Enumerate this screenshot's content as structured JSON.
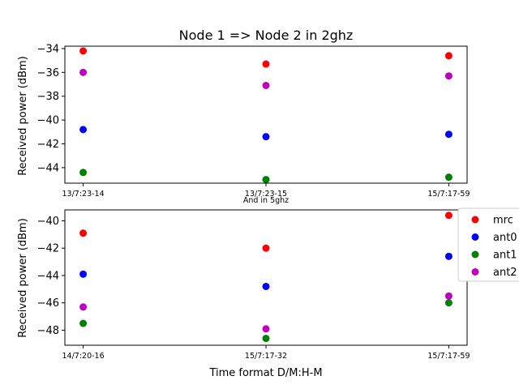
{
  "chart_data": [
    {
      "type": "scatter",
      "title": "Node 1 => Node 2 in 2ghz",
      "xlabel": "",
      "ylabel": "Received power (dBm)",
      "categories": [
        "13/7:23-14",
        "13/7:23-15",
        "15/7:17-59"
      ],
      "ylim": [
        -45.3,
        -33.8
      ],
      "yticks": [
        -44,
        -42,
        -40,
        -38,
        -36,
        -34
      ],
      "series": [
        {
          "name": "mrc",
          "color": "#ff0000",
          "values": [
            -34.2,
            -35.3,
            -34.6
          ]
        },
        {
          "name": "ant0",
          "color": "#0000ff",
          "values": [
            -40.8,
            -41.4,
            -41.2
          ]
        },
        {
          "name": "ant1",
          "color": "#008000",
          "values": [
            -44.4,
            -45.0,
            -44.8
          ]
        },
        {
          "name": "ant2",
          "color": "#bf00bf",
          "values": [
            -36.0,
            -37.1,
            -36.3
          ]
        }
      ],
      "grid": false
    },
    {
      "type": "scatter",
      "title": "And in 5ghz",
      "xlabel": "Time format D/M:H-M",
      "ylabel": "Received power (dBm)",
      "categories": [
        "14/7:20-16",
        "15/7:17-32",
        "15/7:17-59"
      ],
      "ylim": [
        -49.1,
        -39.2
      ],
      "yticks": [
        -48,
        -46,
        -44,
        -42,
        -40
      ],
      "series": [
        {
          "name": "mrc",
          "color": "#ff0000",
          "values": [
            -40.9,
            -42.0,
            -39.6
          ]
        },
        {
          "name": "ant0",
          "color": "#0000ff",
          "values": [
            -43.9,
            -44.8,
            -42.6
          ]
        },
        {
          "name": "ant1",
          "color": "#008000",
          "values": [
            -47.5,
            -48.6,
            -46.0
          ]
        },
        {
          "name": "ant2",
          "color": "#bf00bf",
          "values": [
            -46.3,
            -47.9,
            -45.5
          ]
        }
      ],
      "grid": false,
      "legend_position": "right"
    }
  ]
}
